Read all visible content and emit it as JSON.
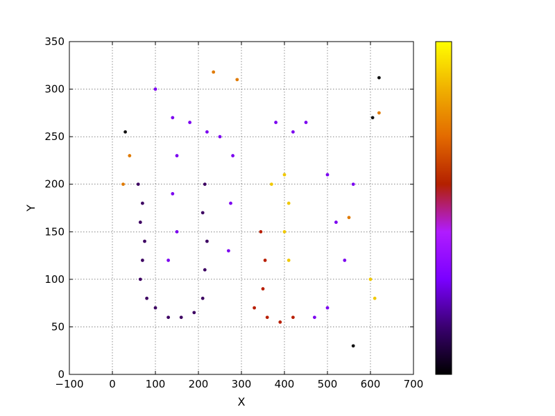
{
  "chart_data": {
    "type": "scatter",
    "title": "",
    "xlabel": "X",
    "ylabel": "Y",
    "xlim": [
      -100,
      700
    ],
    "ylim": [
      0,
      350
    ],
    "xticks": [
      -100,
      0,
      100,
      200,
      300,
      400,
      500,
      600,
      700
    ],
    "yticks": [
      0,
      50,
      100,
      150,
      200,
      250,
      300,
      350
    ],
    "grid": true,
    "colormap": "gnuplot",
    "colorbar_stops": [
      "#000000",
      "#3a0070",
      "#7a00ff",
      "#b01cff",
      "#b32000",
      "#e36a00",
      "#f0b000",
      "#ffff00"
    ],
    "colors": {
      "dark_purple": "#3d0062",
      "violet": "#7b00f0",
      "red": "#b81e00",
      "gold": "#f0c800",
      "orange": "#e07a00",
      "black": "#111111"
    },
    "series": [
      {
        "color_key": "dark_purple",
        "values": [
          {
            "x": 60,
            "y": 200
          },
          {
            "x": 70,
            "y": 180
          },
          {
            "x": 65,
            "y": 160
          },
          {
            "x": 75,
            "y": 140
          },
          {
            "x": 70,
            "y": 120
          },
          {
            "x": 65,
            "y": 100
          },
          {
            "x": 80,
            "y": 80
          },
          {
            "x": 100,
            "y": 70
          },
          {
            "x": 130,
            "y": 60
          },
          {
            "x": 160,
            "y": 60
          },
          {
            "x": 190,
            "y": 65
          },
          {
            "x": 210,
            "y": 80
          },
          {
            "x": 215,
            "y": 110
          },
          {
            "x": 220,
            "y": 140
          },
          {
            "x": 210,
            "y": 170
          },
          {
            "x": 215,
            "y": 200
          }
        ]
      },
      {
        "color_key": "violet",
        "values": [
          {
            "x": 100,
            "y": 300
          },
          {
            "x": 140,
            "y": 270
          },
          {
            "x": 180,
            "y": 265
          },
          {
            "x": 220,
            "y": 255
          },
          {
            "x": 250,
            "y": 250
          },
          {
            "x": 150,
            "y": 230
          },
          {
            "x": 140,
            "y": 190
          },
          {
            "x": 150,
            "y": 150
          },
          {
            "x": 130,
            "y": 120
          },
          {
            "x": 280,
            "y": 230
          },
          {
            "x": 275,
            "y": 180
          },
          {
            "x": 270,
            "y": 130
          },
          {
            "x": 380,
            "y": 265
          },
          {
            "x": 420,
            "y": 255
          },
          {
            "x": 450,
            "y": 265
          },
          {
            "x": 500,
            "y": 210
          },
          {
            "x": 520,
            "y": 160
          },
          {
            "x": 540,
            "y": 120
          },
          {
            "x": 560,
            "y": 200
          },
          {
            "x": 500,
            "y": 70
          },
          {
            "x": 470,
            "y": 60
          }
        ]
      },
      {
        "color_key": "red",
        "values": [
          {
            "x": 330,
            "y": 70
          },
          {
            "x": 360,
            "y": 60
          },
          {
            "x": 390,
            "y": 55
          },
          {
            "x": 420,
            "y": 60
          },
          {
            "x": 350,
            "y": 90
          },
          {
            "x": 355,
            "y": 120
          },
          {
            "x": 345,
            "y": 150
          }
        ]
      },
      {
        "color_key": "gold",
        "values": [
          {
            "x": 370,
            "y": 200
          },
          {
            "x": 400,
            "y": 210
          },
          {
            "x": 410,
            "y": 180
          },
          {
            "x": 400,
            "y": 150
          },
          {
            "x": 410,
            "y": 120
          },
          {
            "x": 600,
            "y": 100
          },
          {
            "x": 610,
            "y": 80
          }
        ]
      },
      {
        "color_key": "orange",
        "values": [
          {
            "x": 235,
            "y": 318
          },
          {
            "x": 290,
            "y": 310
          },
          {
            "x": 40,
            "y": 230
          },
          {
            "x": 550,
            "y": 165
          },
          {
            "x": 620,
            "y": 275
          },
          {
            "x": 25,
            "y": 200
          }
        ]
      },
      {
        "color_key": "black",
        "values": [
          {
            "x": 30,
            "y": 255
          },
          {
            "x": 620,
            "y": 312
          },
          {
            "x": 605,
            "y": 270
          },
          {
            "x": 560,
            "y": 30
          }
        ]
      }
    ]
  }
}
